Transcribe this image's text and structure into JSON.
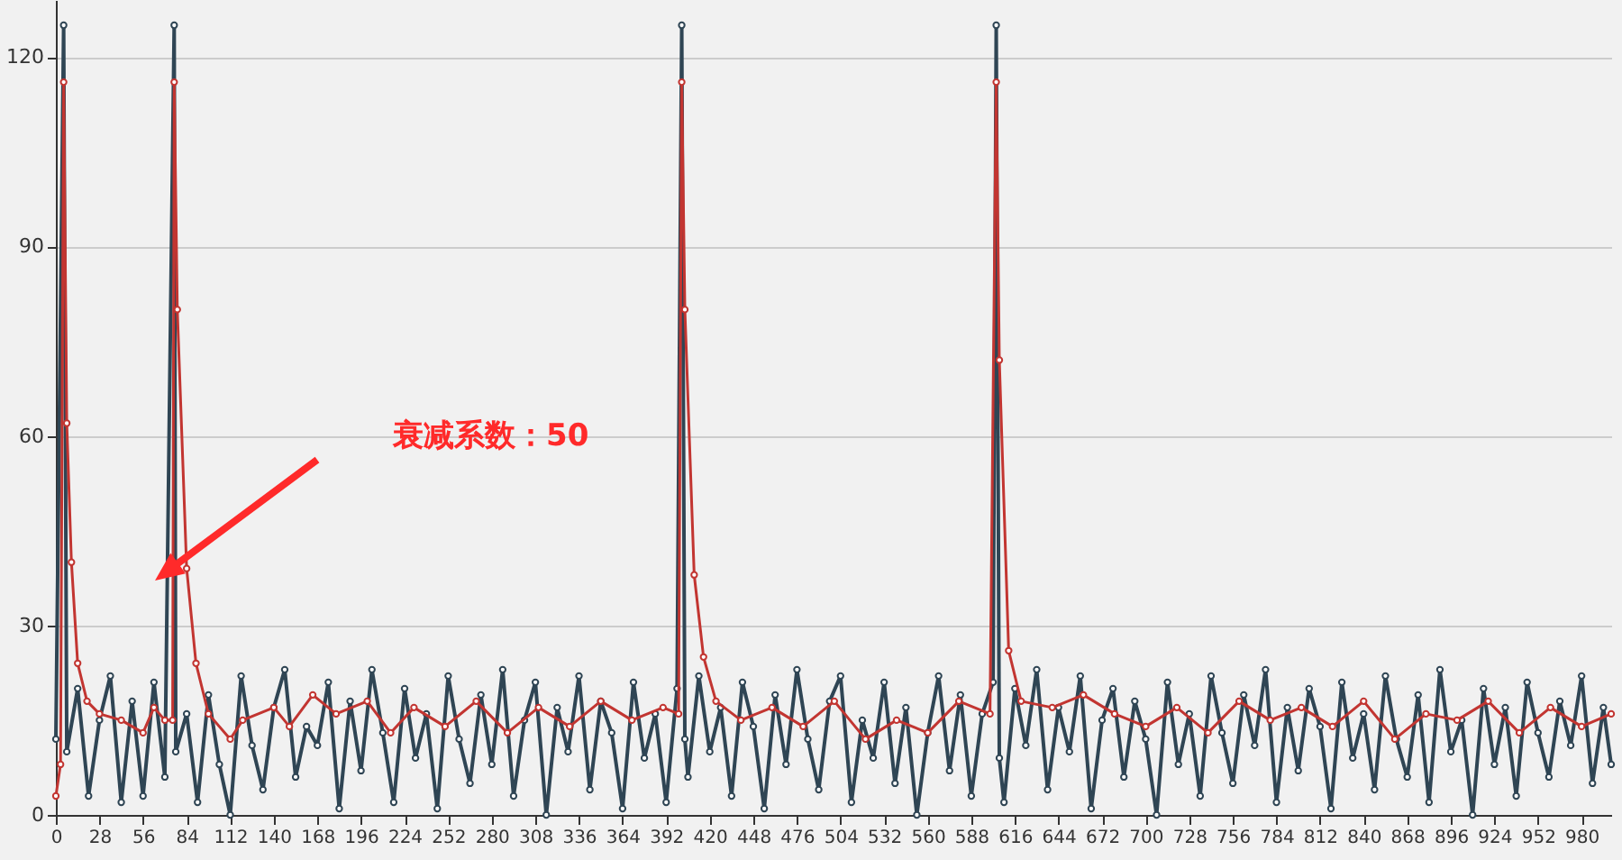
{
  "chart_data": {
    "type": "line",
    "xlim": [
      0,
      999
    ],
    "xticks": [
      0,
      28,
      56,
      84,
      112,
      140,
      168,
      196,
      224,
      252,
      280,
      308,
      336,
      364,
      392,
      420,
      448,
      476,
      504,
      532,
      560,
      588,
      616,
      644,
      672,
      700,
      728,
      756,
      784,
      812,
      840,
      868,
      896,
      924,
      952,
      980
    ],
    "ylim": [
      0,
      129
    ],
    "yticks": [
      0,
      30,
      60,
      90,
      120
    ],
    "grid": "y",
    "marker": "circle",
    "line_style": "solid",
    "annotations": [
      "衰减系数：50"
    ],
    "series": [
      {
        "color": "#2f4554",
        "x": [
          0,
          5,
          7,
          14,
          21,
          28,
          35,
          42,
          49,
          56,
          63,
          70,
          76,
          77,
          84,
          91,
          98,
          105,
          112,
          119,
          126,
          133,
          140,
          147,
          154,
          161,
          168,
          175,
          182,
          189,
          196,
          203,
          210,
          217,
          224,
          231,
          238,
          245,
          252,
          259,
          266,
          273,
          280,
          287,
          294,
          301,
          308,
          315,
          322,
          329,
          336,
          343,
          350,
          357,
          364,
          371,
          378,
          385,
          392,
          399,
          402,
          404,
          406,
          413,
          420,
          427,
          434,
          441,
          448,
          455,
          462,
          469,
          476,
          483,
          490,
          497,
          504,
          511,
          518,
          525,
          532,
          539,
          546,
          553,
          560,
          567,
          574,
          581,
          588,
          595,
          602,
          604,
          606,
          609,
          616,
          623,
          630,
          637,
          644,
          651,
          658,
          665,
          672,
          679,
          686,
          693,
          700,
          707,
          714,
          721,
          728,
          735,
          742,
          749,
          756,
          763,
          770,
          777,
          784,
          791,
          798,
          805,
          812,
          819,
          826,
          833,
          840,
          847,
          854,
          861,
          868,
          875,
          882,
          889,
          896,
          903,
          910,
          917,
          924,
          931,
          938,
          945,
          952,
          959,
          966,
          973,
          980,
          987,
          994,
          999
        ],
        "values": [
          12,
          125,
          10,
          20,
          3,
          15,
          22,
          2,
          18,
          3,
          21,
          6,
          125,
          10,
          16,
          2,
          19,
          8,
          0,
          22,
          11,
          4,
          17,
          23,
          6,
          14,
          11,
          21,
          1,
          18,
          7,
          23,
          13,
          2,
          20,
          9,
          16,
          1,
          22,
          12,
          5,
          19,
          8,
          23,
          3,
          15,
          21,
          0,
          17,
          10,
          22,
          4,
          18,
          13,
          1,
          21,
          9,
          16,
          2,
          20,
          125,
          12,
          6,
          22,
          10,
          17,
          3,
          21,
          14,
          1,
          19,
          8,
          23,
          12,
          4,
          18,
          22,
          2,
          15,
          9,
          21,
          5,
          17,
          0,
          13,
          22,
          7,
          19,
          3,
          16,
          21,
          125,
          9,
          2,
          20,
          11,
          23,
          4,
          17,
          10,
          22,
          1,
          15,
          20,
          6,
          18,
          12,
          0,
          21,
          8,
          16,
          3,
          22,
          13,
          5,
          19,
          11,
          23,
          2,
          17,
          7,
          20,
          14,
          1,
          21,
          9,
          16,
          4,
          22,
          12,
          6,
          19,
          2,
          23,
          10,
          15,
          0,
          20,
          8,
          17,
          3,
          21,
          13,
          6,
          18,
          11,
          22,
          5,
          17,
          8
        ]
      },
      {
        "color": "#c23531",
        "x": [
          0,
          3,
          5,
          7,
          10,
          14,
          20,
          28,
          42,
          56,
          63,
          70,
          75,
          76,
          78,
          84,
          90,
          98,
          112,
          120,
          140,
          150,
          165,
          180,
          200,
          215,
          230,
          250,
          270,
          290,
          310,
          330,
          350,
          370,
          390,
          400,
          402,
          404,
          410,
          416,
          424,
          440,
          460,
          480,
          500,
          520,
          540,
          560,
          580,
          600,
          604,
          606,
          612,
          620,
          640,
          660,
          680,
          700,
          720,
          740,
          760,
          780,
          800,
          820,
          840,
          860,
          880,
          900,
          920,
          940,
          960,
          980,
          999
        ],
        "values": [
          3,
          8,
          116,
          62,
          40,
          24,
          18,
          16,
          15,
          13,
          17,
          15,
          15,
          116,
          80,
          39,
          24,
          16,
          12,
          15,
          17,
          14,
          19,
          16,
          18,
          13,
          17,
          14,
          18,
          13,
          17,
          14,
          18,
          15,
          17,
          16,
          116,
          80,
          38,
          25,
          18,
          15,
          17,
          14,
          18,
          12,
          15,
          13,
          18,
          16,
          116,
          72,
          26,
          18,
          17,
          19,
          16,
          14,
          17,
          13,
          18,
          15,
          17,
          14,
          18,
          12,
          16,
          15,
          18,
          13,
          17,
          14,
          16
        ]
      }
    ]
  }
}
